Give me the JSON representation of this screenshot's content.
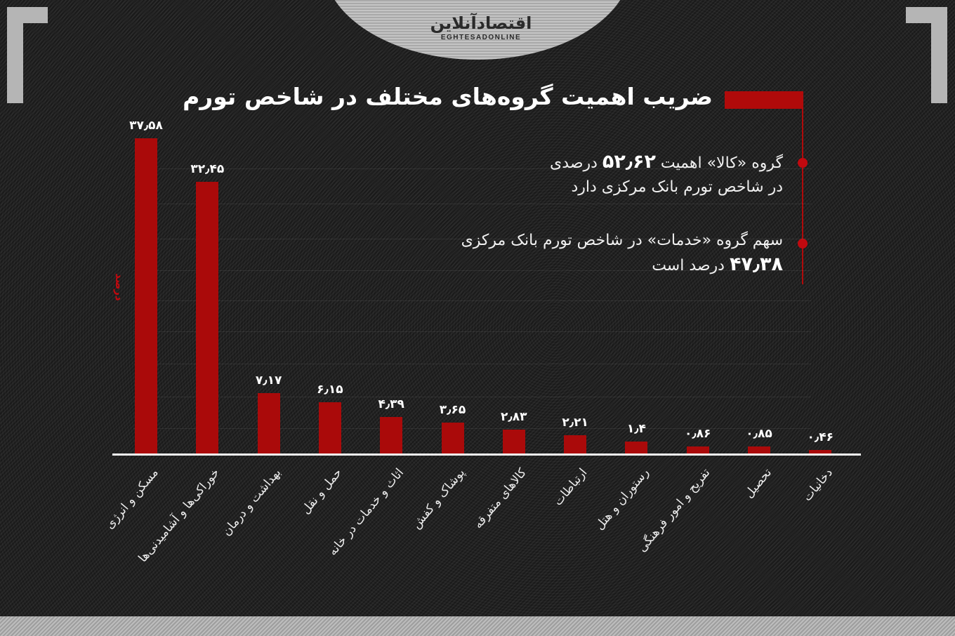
{
  "brand": {
    "logo_fa": "اقتصادآنلاین",
    "logo_en": "EGHTESADONLINE"
  },
  "colors": {
    "background": "#1d1d1d",
    "accent_red": "#aa0a0a",
    "corner_gray": "#b5b5b5",
    "text": "#ffffff"
  },
  "title": "ضریب اهمیت گروه‌های مختلف در شاخص تورم",
  "notes": [
    {
      "before": "گروه «کالا» اهمیت ",
      "value": "۵۲٫۶۲",
      "after": " درصدی",
      "line2": "در شاخص تورم بانک مرکزی دارد"
    },
    {
      "line1": "سهم گروه «خدمات» در شاخص تورم بانک مرکزی",
      "value": "۴۷٫۳۸",
      "after": " درصد است"
    }
  ],
  "y_axis_label": "درصد",
  "chart_data": {
    "type": "bar",
    "title": "ضریب اهمیت گروه‌های مختلف در شاخص تورم",
    "xlabel": "",
    "ylabel": "درصد",
    "ylim": [
      0,
      40
    ],
    "grid": true,
    "legend": null,
    "categories": [
      "مسکن و انرژی",
      "خوراکی‌ها و آشامیدنی‌ها",
      "بهداشت و درمان",
      "حمل و نقل",
      "اثاث و خدمات در خانه",
      "پوشاک و کفش",
      "کالاهای متفرقه",
      "ارتباطات",
      "رستوران و هتل",
      "تفریح و امور فرهنگی",
      "تحصیل",
      "دخانیات"
    ],
    "values": [
      37.58,
      32.45,
      7.17,
      6.15,
      4.39,
      3.65,
      2.83,
      2.21,
      1.4,
      0.86,
      0.85,
      0.46
    ],
    "value_labels": [
      "۳۷٫۵۸",
      "۳۲٫۴۵",
      "۷٫۱۷",
      "۶٫۱۵",
      "۴٫۳۹",
      "۳٫۶۵",
      "۲٫۸۳",
      "۲٫۲۱",
      "۱٫۴",
      "۰٫۸۶",
      "۰٫۸۵",
      "۰٫۴۶"
    ],
    "annotations": [
      "گروه «کالا» اهمیت ۵۲٫۶۲ درصدی در شاخص تورم بانک مرکزی دارد",
      "سهم گروه «خدمات» در شاخص تورم بانک مرکزی ۴۷٫۳۸ درصد است"
    ]
  }
}
